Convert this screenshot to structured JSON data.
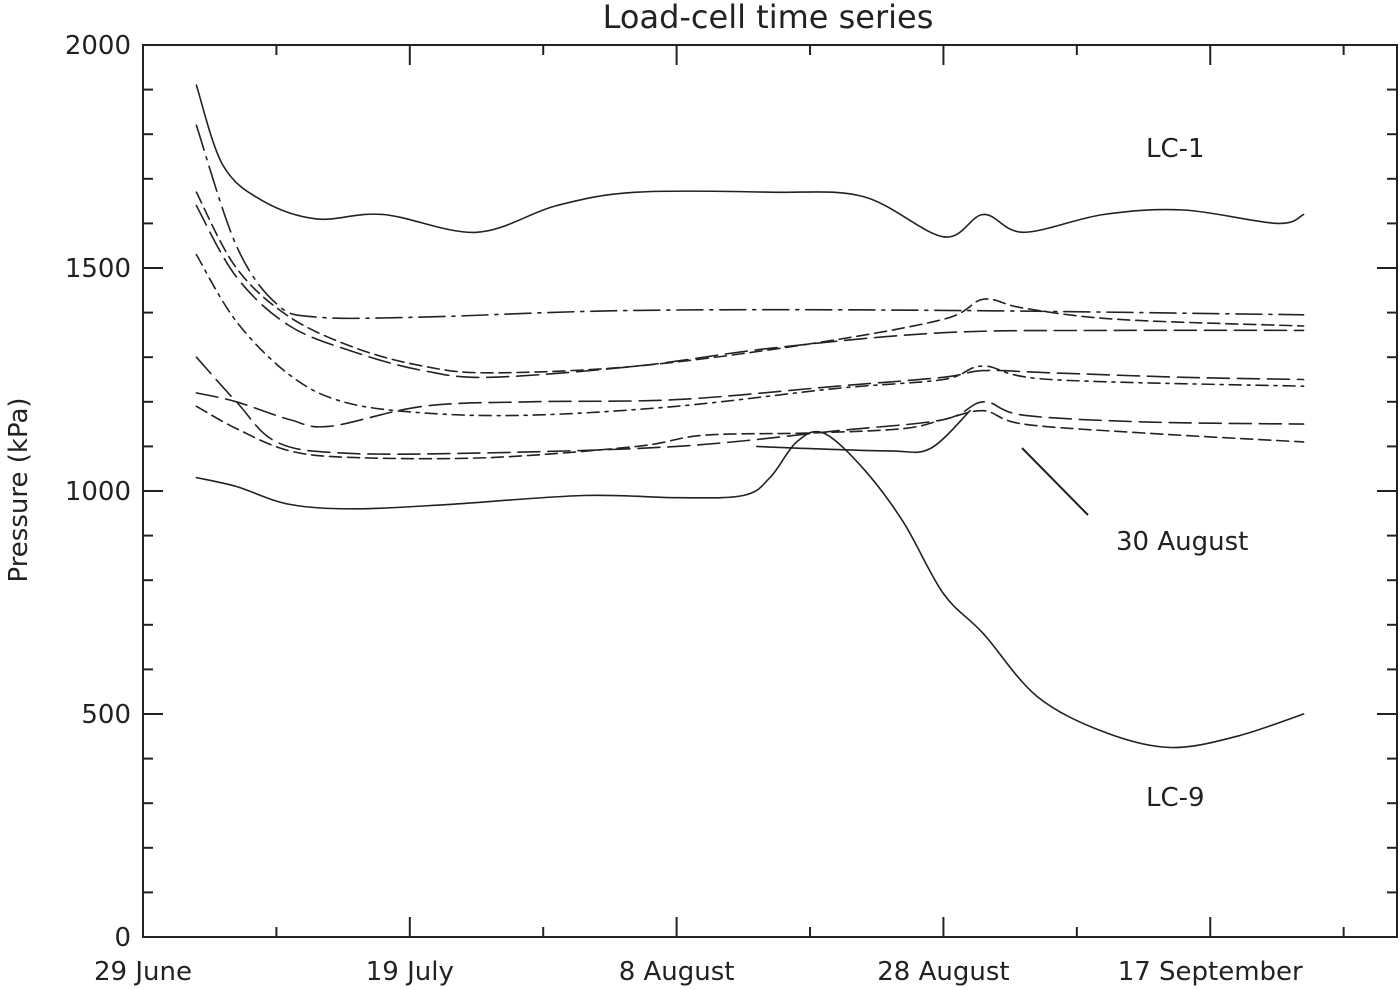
{
  "chart_data": {
    "type": "line",
    "title": "Load-cell time series",
    "xlabel": "",
    "ylabel": "Pressure (kPa)",
    "xlim": [
      "2001-06-29",
      "2001-10-01"
    ],
    "ylim": [
      0,
      2000
    ],
    "yticks": [
      0,
      500,
      1000,
      1500,
      2000
    ],
    "ytick_labels": [
      "0",
      "500",
      "1000",
      "1500",
      "2000"
    ],
    "xticks": [
      "2001-06-29",
      "2001-07-19",
      "2001-08-08",
      "2001-08-28",
      "2001-09-17"
    ],
    "xtick_labels": [
      "29 June",
      "19 July",
      "8 August",
      "28 August",
      "17 September"
    ],
    "grid": false,
    "annotations": [
      {
        "text": "LC-1",
        "near_series": "LC-1"
      },
      {
        "text": "30 August",
        "points_to": "2001-08-30"
      },
      {
        "text": "LC-9",
        "near_series": "LC-9"
      }
    ],
    "series": [
      {
        "name": "LC-1",
        "dash": "solid",
        "points": [
          [
            "2001-07-03",
            1910
          ],
          [
            "2001-07-05",
            1730
          ],
          [
            "2001-07-08",
            1650
          ],
          [
            "2001-07-12",
            1610
          ],
          [
            "2001-07-17",
            1620
          ],
          [
            "2001-07-24",
            1580
          ],
          [
            "2001-07-30",
            1640
          ],
          [
            "2001-08-05",
            1670
          ],
          [
            "2001-08-15",
            1670
          ],
          [
            "2001-08-22",
            1660
          ],
          [
            "2001-08-28",
            1570
          ],
          [
            "2001-08-31",
            1620
          ],
          [
            "2001-09-03",
            1580
          ],
          [
            "2001-09-09",
            1620
          ],
          [
            "2001-09-15",
            1630
          ],
          [
            "2001-09-22",
            1600
          ],
          [
            "2001-09-24",
            1620
          ]
        ]
      },
      {
        "name": "",
        "dash": "long-dash-dot",
        "points": [
          [
            "2001-07-03",
            1820
          ],
          [
            "2001-07-06",
            1550
          ],
          [
            "2001-07-09",
            1420
          ],
          [
            "2001-07-12",
            1390
          ],
          [
            "2001-07-20",
            1390
          ],
          [
            "2001-08-05",
            1405
          ],
          [
            "2001-08-28",
            1405
          ],
          [
            "2001-09-24",
            1395
          ]
        ]
      },
      {
        "name": "",
        "dash": "dash",
        "points": [
          [
            "2001-07-03",
            1670
          ],
          [
            "2001-07-06",
            1500
          ],
          [
            "2001-07-10",
            1390
          ],
          [
            "2001-07-15",
            1320
          ],
          [
            "2001-07-20",
            1280
          ],
          [
            "2001-07-25",
            1265
          ],
          [
            "2001-08-05",
            1280
          ],
          [
            "2001-08-18",
            1330
          ],
          [
            "2001-08-28",
            1385
          ],
          [
            "2001-08-31",
            1430
          ],
          [
            "2001-09-03",
            1410
          ],
          [
            "2001-09-10",
            1385
          ],
          [
            "2001-09-24",
            1370
          ]
        ]
      },
      {
        "name": "",
        "dash": "long-dash",
        "points": [
          [
            "2001-07-03",
            1640
          ],
          [
            "2001-07-06",
            1480
          ],
          [
            "2001-07-10",
            1370
          ],
          [
            "2001-07-15",
            1310
          ],
          [
            "2001-07-20",
            1270
          ],
          [
            "2001-07-25",
            1255
          ],
          [
            "2001-08-05",
            1280
          ],
          [
            "2001-08-15",
            1320
          ],
          [
            "2001-08-28",
            1355
          ],
          [
            "2001-09-10",
            1360
          ],
          [
            "2001-09-24",
            1360
          ]
        ]
      },
      {
        "name": "",
        "dash": "dash-dot",
        "points": [
          [
            "2001-07-03",
            1530
          ],
          [
            "2001-07-06",
            1380
          ],
          [
            "2001-07-10",
            1260
          ],
          [
            "2001-07-14",
            1200
          ],
          [
            "2001-07-20",
            1175
          ],
          [
            "2001-07-28",
            1170
          ],
          [
            "2001-08-08",
            1190
          ],
          [
            "2001-08-20",
            1230
          ],
          [
            "2001-08-28",
            1250
          ],
          [
            "2001-08-31",
            1280
          ],
          [
            "2001-09-05",
            1250
          ],
          [
            "2001-09-24",
            1235
          ]
        ]
      },
      {
        "name": "",
        "dash": "long-dash",
        "points": [
          [
            "2001-07-03",
            1220
          ],
          [
            "2001-07-06",
            1200
          ],
          [
            "2001-07-10",
            1160
          ],
          [
            "2001-07-13",
            1145
          ],
          [
            "2001-07-20",
            1190
          ],
          [
            "2001-07-28",
            1200
          ],
          [
            "2001-08-08",
            1205
          ],
          [
            "2001-08-20",
            1235
          ],
          [
            "2001-08-28",
            1255
          ],
          [
            "2001-08-31",
            1270
          ],
          [
            "2001-09-05",
            1265
          ],
          [
            "2001-09-15",
            1255
          ],
          [
            "2001-09-24",
            1250
          ]
        ]
      },
      {
        "name": "",
        "dash": "long-dash",
        "points": [
          [
            "2001-07-03",
            1300
          ],
          [
            "2001-07-06",
            1200
          ],
          [
            "2001-07-09",
            1110
          ],
          [
            "2001-07-14",
            1085
          ],
          [
            "2001-07-24",
            1085
          ],
          [
            "2001-08-08",
            1100
          ],
          [
            "2001-08-20",
            1135
          ],
          [
            "2001-08-28",
            1160
          ],
          [
            "2001-08-31",
            1200
          ],
          [
            "2001-09-03",
            1170
          ],
          [
            "2001-09-12",
            1155
          ],
          [
            "2001-09-24",
            1150
          ]
        ]
      },
      {
        "name": "",
        "dash": "dash",
        "points": [
          [
            "2001-07-03",
            1190
          ],
          [
            "2001-07-06",
            1140
          ],
          [
            "2001-07-10",
            1090
          ],
          [
            "2001-07-15",
            1075
          ],
          [
            "2001-07-25",
            1075
          ],
          [
            "2001-08-05",
            1100
          ],
          [
            "2001-08-10",
            1125
          ],
          [
            "2001-08-18",
            1130
          ],
          [
            "2001-08-25",
            1140
          ],
          [
            "2001-08-28",
            1160
          ],
          [
            "2001-08-31",
            1180
          ],
          [
            "2001-09-03",
            1150
          ],
          [
            "2001-09-12",
            1130
          ],
          [
            "2001-09-24",
            1110
          ]
        ]
      },
      {
        "name": "",
        "dash": "solid",
        "points": [
          [
            "2001-08-14",
            1100
          ],
          [
            "2001-08-18",
            1095
          ],
          [
            "2001-08-24",
            1090
          ],
          [
            "2001-08-27",
            1095
          ],
          [
            "2001-08-30",
            1180
          ]
        ]
      },
      {
        "name": "LC-9",
        "dash": "solid",
        "points": [
          [
            "2001-07-03",
            1030
          ],
          [
            "2001-07-06",
            1010
          ],
          [
            "2001-07-10",
            970
          ],
          [
            "2001-07-15",
            960
          ],
          [
            "2001-07-22",
            970
          ],
          [
            "2001-08-01",
            990
          ],
          [
            "2001-08-08",
            985
          ],
          [
            "2001-08-13",
            990
          ],
          [
            "2001-08-15",
            1030
          ],
          [
            "2001-08-17",
            1110
          ],
          [
            "2001-08-19",
            1130
          ],
          [
            "2001-08-22",
            1050
          ],
          [
            "2001-08-25",
            930
          ],
          [
            "2001-08-28",
            770
          ],
          [
            "2001-08-31",
            680
          ],
          [
            "2001-09-04",
            540
          ],
          [
            "2001-09-09",
            460
          ],
          [
            "2001-09-14",
            425
          ],
          [
            "2001-09-19",
            450
          ],
          [
            "2001-09-24",
            500
          ]
        ]
      }
    ]
  }
}
